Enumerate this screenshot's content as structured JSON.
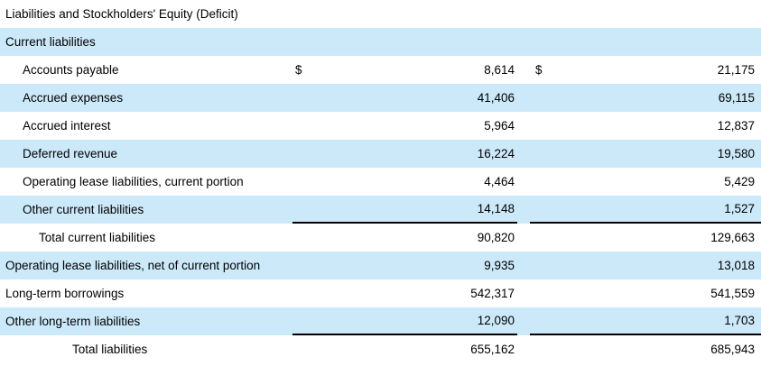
{
  "colors": {
    "row_shade": "#cce9fa",
    "rule": "#000000",
    "text": "#000000",
    "background": "#ffffff"
  },
  "table": {
    "currency_symbol": "$",
    "rows": [
      {
        "label": "Liabilities and Stockholders' Equity (Deficit)",
        "indent": 0,
        "shaded": false,
        "dollar": false,
        "val1": "",
        "val2": "",
        "underline": false
      },
      {
        "label": "Current liabilities",
        "indent": 0,
        "shaded": true,
        "dollar": false,
        "val1": "",
        "val2": "",
        "underline": false
      },
      {
        "label": "Accounts payable",
        "indent": 1,
        "shaded": false,
        "dollar": true,
        "val1": "8,614",
        "val2": "21,175",
        "underline": false
      },
      {
        "label": "Accrued expenses",
        "indent": 1,
        "shaded": true,
        "dollar": false,
        "val1": "41,406",
        "val2": "69,115",
        "underline": false
      },
      {
        "label": "Accrued interest",
        "indent": 1,
        "shaded": false,
        "dollar": false,
        "val1": "5,964",
        "val2": "12,837",
        "underline": false
      },
      {
        "label": "Deferred revenue",
        "indent": 1,
        "shaded": true,
        "dollar": false,
        "val1": "16,224",
        "val2": "19,580",
        "underline": false
      },
      {
        "label": "Operating lease liabilities, current portion",
        "indent": 1,
        "shaded": false,
        "dollar": false,
        "val1": "4,464",
        "val2": "5,429",
        "underline": false
      },
      {
        "label": "Other current liabilities",
        "indent": 1,
        "shaded": true,
        "dollar": false,
        "val1": "14,148",
        "val2": "1,527",
        "underline": true
      },
      {
        "label": "Total current liabilities",
        "indent": 2,
        "shaded": false,
        "dollar": false,
        "val1": "90,820",
        "val2": "129,663",
        "underline": false
      },
      {
        "label": "Operating lease liabilities, net of current portion",
        "indent": 0,
        "shaded": true,
        "dollar": false,
        "val1": "9,935",
        "val2": "13,018",
        "underline": false
      },
      {
        "label": "Long-term borrowings",
        "indent": 0,
        "shaded": false,
        "dollar": false,
        "val1": "542,317",
        "val2": "541,559",
        "underline": false
      },
      {
        "label": "Other long-term liabilities",
        "indent": 0,
        "shaded": true,
        "dollar": false,
        "val1": "12,090",
        "val2": "1,703",
        "underline": true
      },
      {
        "label": "Total liabilities",
        "indent": 3,
        "shaded": false,
        "dollar": false,
        "val1": "655,162",
        "val2": "685,943",
        "underline": false
      }
    ]
  }
}
